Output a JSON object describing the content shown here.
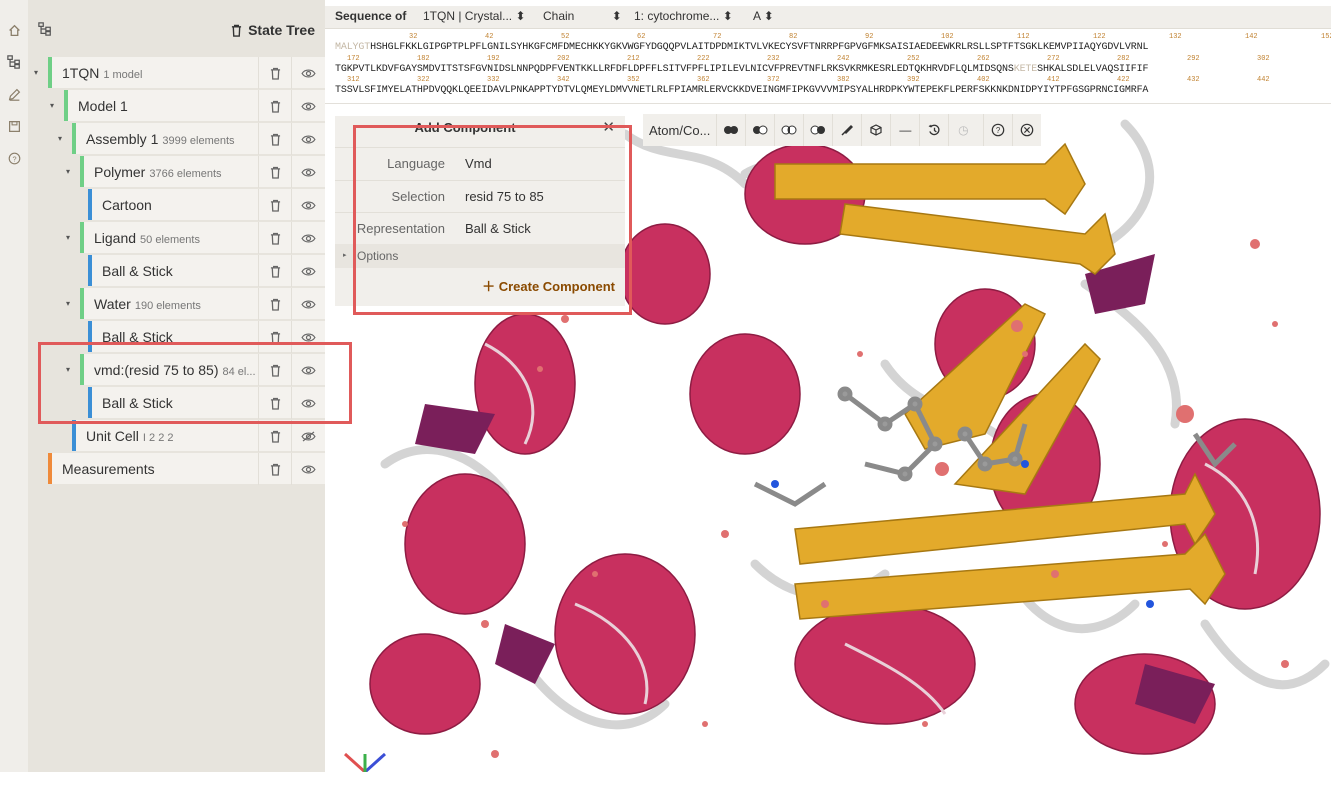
{
  "rail": {
    "icons": [
      "home-icon",
      "tree-icon",
      "pencil-icon",
      "save-icon",
      "help-icon"
    ]
  },
  "tree": {
    "title": "State Tree",
    "nodes": [
      {
        "label": "1TQN",
        "sub": "1 model",
        "color": "#6fcf86",
        "visible": true
      },
      {
        "label": "Model 1",
        "sub": "",
        "color": "#6fcf86",
        "visible": true
      },
      {
        "label": "Assembly 1",
        "sub": "3999 elements",
        "color": "#6fcf86",
        "visible": true
      },
      {
        "label": "Polymer",
        "sub": "3766 elements",
        "color": "#6fcf86",
        "visible": true
      },
      {
        "label": "Cartoon",
        "sub": "",
        "color": "#3b8fd6",
        "visible": true
      },
      {
        "label": "Ligand",
        "sub": "50 elements",
        "color": "#6fcf86",
        "visible": true
      },
      {
        "label": "Ball & Stick",
        "sub": "",
        "color": "#3b8fd6",
        "visible": true
      },
      {
        "label": "Water",
        "sub": "190 elements",
        "color": "#6fcf86",
        "visible": true
      },
      {
        "label": "Ball & Stick",
        "sub": "",
        "color": "#3b8fd6",
        "visible": true
      },
      {
        "label": "vmd:(resid 75 to 85)",
        "sub": "84 el...",
        "color": "#6fcf86",
        "visible": true
      },
      {
        "label": "Ball & Stick",
        "sub": "",
        "color": "#3b8fd6",
        "visible": true
      },
      {
        "label": "Unit Cell",
        "sub": "I 2 2 2",
        "color": "#3b8fd6",
        "visible": false
      },
      {
        "label": "Measurements",
        "sub": "",
        "color": "#ef8a3a",
        "visible": true
      }
    ]
  },
  "sequence": {
    "label": "Sequence of",
    "structure": "1TQN | Crystal...",
    "mode": "Chain",
    "entity": "1: cytochrome...",
    "chain": "A",
    "rows": [
      {
        "faded_prefix": "MALYGT",
        "text": "HSHGLFKKLGIPGPTPLPFLGNILSYHKGFCMFDMECHKKYGKVWGFYDGQQPVLAITDPDMIKTVLVKECYSVFTNRRPFGPVGFMKSAISIAEDEEWKRLRSLLSPTFTSGKLKEMVPIIAQYGDVLVRNL",
        "faded_mid": "",
        "suffix": ""
      },
      {
        "faded_prefix": "",
        "text": "TGKPVTLKDVFGAYSMDVITSTSFGVNIDSLNNPQDPFVENTKKLLRFDFLDPFFLSITVFPFLIPILEVLNICVFPREVTNFLRKSVKRMKESRLEDTQKHRVDFLQLMIDSQNS",
        "faded_mid": "KETE",
        "suffix": "SHKALSDLELVAQSIIFIF"
      },
      {
        "faded_prefix": "",
        "text": "TSSVLSFIMYELATHPDVQQKLQEEIDAVLPNKAPPTYDTVLQMEYLDMVVNETLRLFPIAMRLERVCKKDVEINGMFIPKGVVVMIPSYALHRDPKYWTEPEKFLPERFSKKNKDNIDPYIYTPFGSGPRNCIGMRFA",
        "faded_mid": "",
        "suffix": ""
      }
    ],
    "row1_numbers": [
      "32",
      "42",
      "52",
      "62",
      "72",
      "82",
      "92",
      "102",
      "112",
      "122",
      "132",
      "142",
      "152"
    ],
    "row2_numbers": [
      "172",
      "182",
      "192",
      "202",
      "212",
      "222",
      "232",
      "242",
      "252",
      "262",
      "272",
      "282",
      "292",
      "302"
    ],
    "row3_numbers": [
      "312",
      "322",
      "332",
      "342",
      "352",
      "362",
      "372",
      "382",
      "392",
      "402",
      "412",
      "422",
      "432",
      "442"
    ]
  },
  "add_component": {
    "title": "Add Component",
    "rows": [
      {
        "key": "Language",
        "value": "Vmd"
      },
      {
        "key": "Selection",
        "value": "resid 75 to 85"
      },
      {
        "key": "Representation",
        "value": "Ball & Stick"
      }
    ],
    "options_label": "Options",
    "create_label": "Create Component"
  },
  "toolbar": {
    "label": "Atom/Co..."
  }
}
